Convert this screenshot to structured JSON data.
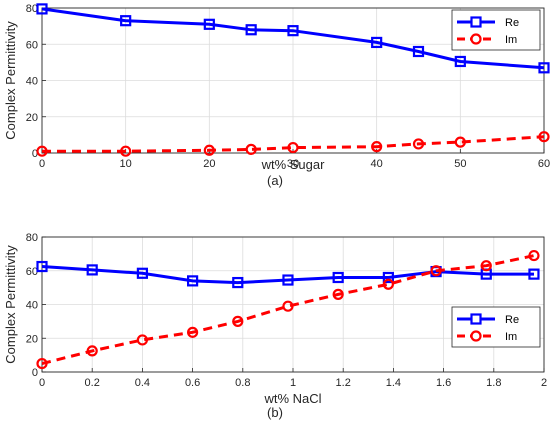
{
  "chart_data": [
    {
      "type": "line",
      "caption": "(a)",
      "xlabel": "wt% Sugar",
      "ylabel": "Complex Permittivity",
      "xlim": [
        0,
        60
      ],
      "ylim": [
        0,
        80
      ],
      "xticks": [
        0,
        10,
        20,
        30,
        40,
        50,
        60
      ],
      "yticks": [
        0,
        20,
        40,
        60,
        80
      ],
      "grid": true,
      "legend": "top-right",
      "series": [
        {
          "name": "Re",
          "color": "#0000ff",
          "marker": "square",
          "line": "solid",
          "x": [
            0,
            10,
            20,
            25,
            30,
            40,
            45,
            50,
            60
          ],
          "y": [
            79.5,
            73,
            71,
            68,
            67.5,
            61,
            56,
            50.5,
            47
          ]
        },
        {
          "name": "Im",
          "color": "#ff0000",
          "marker": "circle",
          "line": "dashed",
          "x": [
            0,
            10,
            20,
            25,
            30,
            40,
            45,
            50,
            60
          ],
          "y": [
            1,
            1,
            1.5,
            2,
            3,
            3.5,
            5,
            6,
            9
          ]
        }
      ]
    },
    {
      "type": "line",
      "caption": "(b)",
      "xlabel": "wt% NaCl",
      "ylabel": "Complex Permittivity",
      "xlim": [
        0,
        2
      ],
      "ylim": [
        0,
        80
      ],
      "xticks": [
        0,
        0.2,
        0.4,
        0.6,
        0.8,
        1,
        1.2,
        1.4,
        1.6,
        1.8,
        2
      ],
      "yticks": [
        0,
        20,
        40,
        60,
        80
      ],
      "grid": true,
      "legend": "right",
      "series": [
        {
          "name": "Re",
          "color": "#0000ff",
          "marker": "square",
          "line": "solid",
          "x": [
            0,
            0.2,
            0.4,
            0.6,
            0.78,
            0.98,
            1.18,
            1.38,
            1.57,
            1.77,
            1.96
          ],
          "y": [
            62.5,
            60.5,
            58.5,
            54,
            53,
            54.5,
            56,
            56,
            59.5,
            58,
            58
          ]
        },
        {
          "name": "Im",
          "color": "#ff0000",
          "marker": "circle",
          "line": "dashed",
          "x": [
            0,
            0.2,
            0.4,
            0.6,
            0.78,
            0.98,
            1.18,
            1.38,
            1.57,
            1.77,
            1.96
          ],
          "y": [
            5,
            12.5,
            19,
            23.5,
            30,
            39,
            46,
            52,
            60,
            63,
            69
          ]
        }
      ]
    }
  ]
}
